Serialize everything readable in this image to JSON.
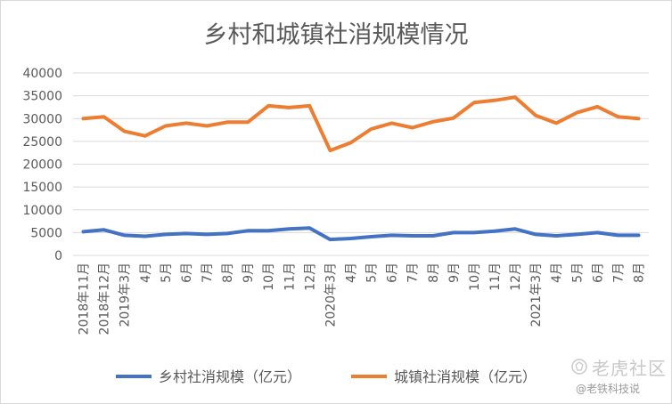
{
  "chart_data": {
    "type": "line",
    "title": "乡村和城镇社消规模情况",
    "ylim": [
      0,
      40000
    ],
    "yticks": [
      "0",
      "5000",
      "10000",
      "15000",
      "20000",
      "25000",
      "30000",
      "35000",
      "40000"
    ],
    "grid": true,
    "legend_position": "bottom",
    "categories": [
      "2018年11月",
      "2018年12月",
      "2019年3月",
      "4月",
      "5月",
      "6月",
      "7月",
      "8月",
      "9月",
      "10月",
      "11月",
      "12月",
      "2020年3月",
      "4月",
      "5月",
      "6月",
      "7月",
      "8月",
      "9月",
      "10月",
      "11月",
      "12月",
      "2021年3月",
      "4月",
      "5月",
      "6月",
      "7月",
      "8月"
    ],
    "series": [
      {
        "name": "乡村社消规模（亿元）",
        "color": "#4472c4",
        "values": [
          5200,
          5600,
          4400,
          4200,
          4600,
          4800,
          4600,
          4800,
          5400,
          5400,
          5800,
          6000,
          3500,
          3700,
          4100,
          4400,
          4300,
          4300,
          5000,
          5000,
          5300,
          5800,
          4600,
          4300,
          4600,
          5000,
          4400,
          4400
        ]
      },
      {
        "name": "城镇社消规模（亿元）",
        "color": "#ed7d31",
        "values": [
          30000,
          30400,
          27200,
          26200,
          28400,
          29000,
          28400,
          29200,
          29200,
          32800,
          32400,
          32800,
          23000,
          24700,
          27700,
          29000,
          28000,
          29300,
          30100,
          33500,
          34000,
          34700,
          30700,
          29000,
          31300,
          32600,
          30400,
          30000
        ]
      }
    ]
  },
  "watermark": {
    "main": "老虎社区",
    "sub": "@老铁科技说",
    "icon": "tiger-logo-icon"
  }
}
